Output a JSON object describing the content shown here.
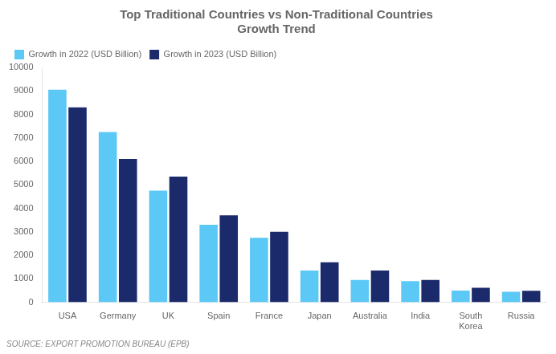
{
  "chart_data": {
    "type": "bar",
    "title": "Top Traditional Countries vs Non-Traditional Countries\nGrowth Trend",
    "categories": [
      "USA",
      "Germany",
      "UK",
      "Spain",
      "France",
      "Japan",
      "Australia",
      "India",
      "South\nKorea",
      "Russia"
    ],
    "series": [
      {
        "name": "Growth in 2022 (USD Billion)",
        "color": "#5BC8F5",
        "values": [
          9050,
          7250,
          4750,
          3300,
          2750,
          1350,
          950,
          900,
          500,
          450
        ]
      },
      {
        "name": "Growth in 2023 (USD Billion)",
        "color": "#1B2A6B",
        "values": [
          8300,
          6100,
          5350,
          3700,
          3000,
          1700,
          1350,
          950,
          620,
          490
        ]
      }
    ],
    "ylim": [
      0,
      10000
    ],
    "yticks": [
      0,
      1000,
      2000,
      3000,
      4000,
      5000,
      6000,
      7000,
      8000,
      9000,
      10000
    ],
    "grid": false,
    "legend": "upper left",
    "annotations": [
      "SOURCE: EXPORT PROMOTION BUREAU (EPB)"
    ]
  }
}
